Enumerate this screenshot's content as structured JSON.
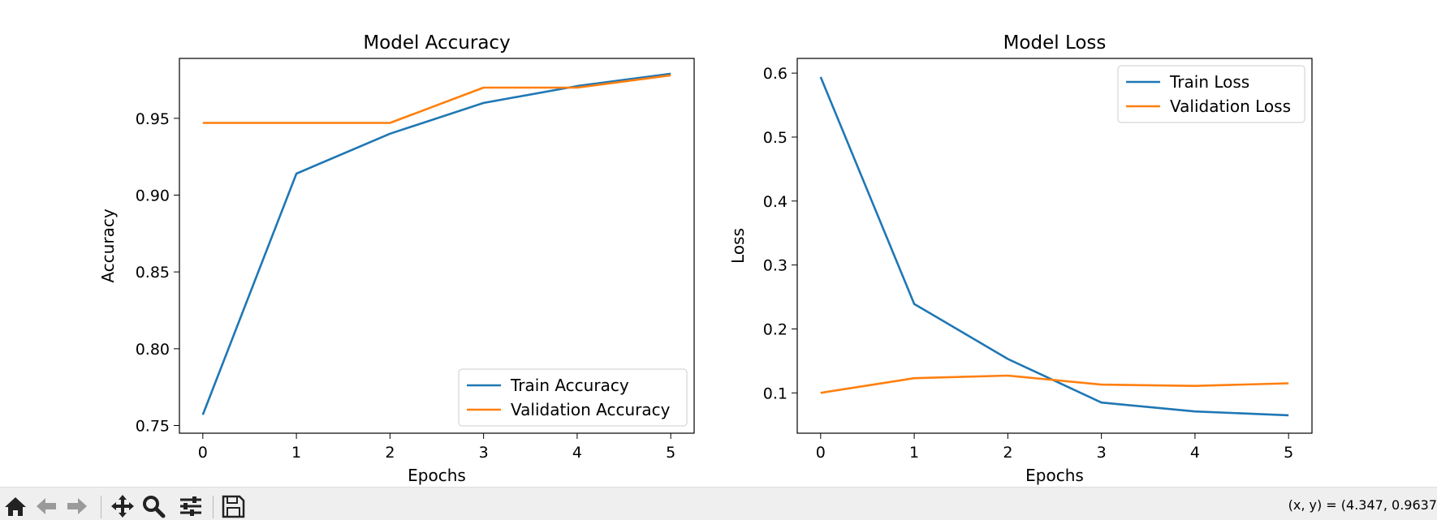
{
  "chart_data": [
    {
      "type": "line",
      "title": "Model Accuracy",
      "xlabel": "Epochs",
      "ylabel": "Accuracy",
      "x": [
        0,
        1,
        2,
        3,
        4,
        5
      ],
      "xticks": [
        "0",
        "1",
        "2",
        "3",
        "4",
        "5"
      ],
      "yticks": [
        "0.75",
        "0.80",
        "0.85",
        "0.90",
        "0.95"
      ],
      "xlim": [
        -0.25,
        5.25
      ],
      "ylim": [
        0.745,
        0.989
      ],
      "legend_loc": "lower-right",
      "series": [
        {
          "name": "Train Accuracy",
          "color": "#1f77b4",
          "values": [
            0.757,
            0.914,
            0.94,
            0.96,
            0.971,
            0.979
          ]
        },
        {
          "name": "Validation Accuracy",
          "color": "#ff7f0e",
          "values": [
            0.947,
            0.947,
            0.947,
            0.97,
            0.97,
            0.978
          ]
        }
      ]
    },
    {
      "type": "line",
      "title": "Model Loss",
      "xlabel": "Epochs",
      "ylabel": "Loss",
      "x": [
        0,
        1,
        2,
        3,
        4,
        5
      ],
      "xticks": [
        "0",
        "1",
        "2",
        "3",
        "4",
        "5"
      ],
      "yticks": [
        "0.1",
        "0.2",
        "0.3",
        "0.4",
        "0.5",
        "0.6"
      ],
      "xlim": [
        -0.25,
        5.25
      ],
      "ylim": [
        0.037,
        0.623
      ],
      "legend_loc": "upper-right",
      "series": [
        {
          "name": "Train Loss",
          "color": "#1f77b4",
          "values": [
            0.594,
            0.239,
            0.153,
            0.085,
            0.071,
            0.065
          ]
        },
        {
          "name": "Validation Loss",
          "color": "#ff7f0e",
          "values": [
            0.1,
            0.123,
            0.127,
            0.113,
            0.111,
            0.115
          ]
        }
      ]
    }
  ],
  "toolbar": {
    "buttons": [
      {
        "id": "home",
        "icon": "home-icon"
      },
      {
        "id": "back",
        "icon": "back-arrow-icon"
      },
      {
        "id": "forward",
        "icon": "forward-arrow-icon"
      },
      {
        "id": "pan",
        "icon": "pan-icon"
      },
      {
        "id": "zoom",
        "icon": "zoom-icon"
      },
      {
        "id": "configure",
        "icon": "sliders-icon"
      },
      {
        "id": "save",
        "icon": "save-icon"
      }
    ],
    "coords_text": "(x, y) = (4.347, 0.9637"
  }
}
